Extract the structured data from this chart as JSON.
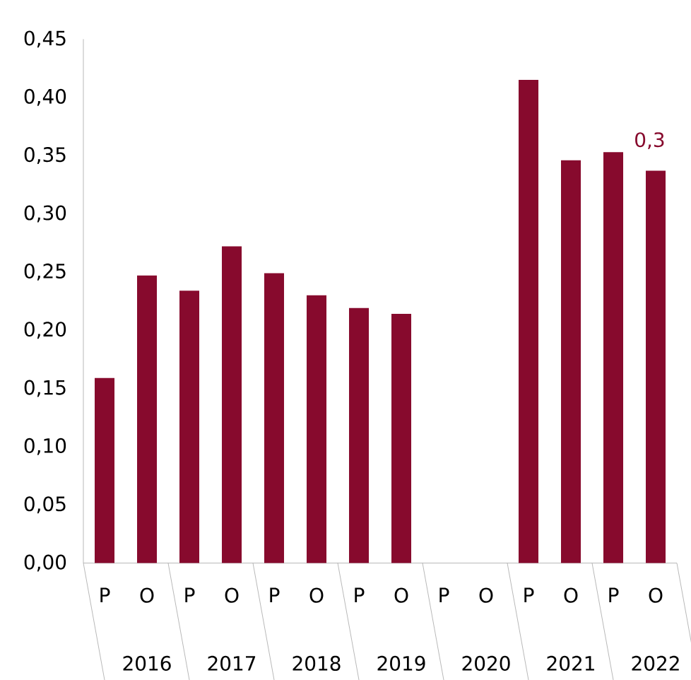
{
  "chart_data": {
    "type": "bar",
    "categories": [
      "P",
      "O",
      "P",
      "O",
      "P",
      "O",
      "P",
      "O",
      "P",
      "O",
      "P",
      "O",
      "P",
      "O"
    ],
    "values": [
      0.159,
      0.247,
      0.234,
      0.272,
      0.249,
      0.23,
      0.219,
      0.214,
      null,
      null,
      0.415,
      0.346,
      0.353,
      0.337
    ],
    "value_labels": [
      null,
      null,
      null,
      null,
      null,
      null,
      null,
      null,
      null,
      null,
      null,
      null,
      null,
      "0,3"
    ],
    "color": "#870a2d",
    "annotations": [
      "2016",
      "2017",
      "2018",
      "2019",
      "2020",
      "2021",
      "2022"
    ],
    "ylim": [
      0,
      0.45
    ],
    "yticks": [
      {
        "value": 0,
        "label": "0,00"
      },
      {
        "value": 0.05,
        "label": "0,05"
      },
      {
        "value": 0.1,
        "label": "0,10"
      },
      {
        "value": 0.15,
        "label": "0,15"
      },
      {
        "value": 0.2,
        "label": "0,20"
      },
      {
        "value": 0.25,
        "label": "0,25"
      },
      {
        "value": 0.3,
        "label": "0,30"
      },
      {
        "value": 0.35,
        "label": "0,35"
      },
      {
        "value": 0.4,
        "label": "0,40"
      },
      {
        "value": 0.45,
        "label": "0,45"
      }
    ],
    "grid": false
  }
}
